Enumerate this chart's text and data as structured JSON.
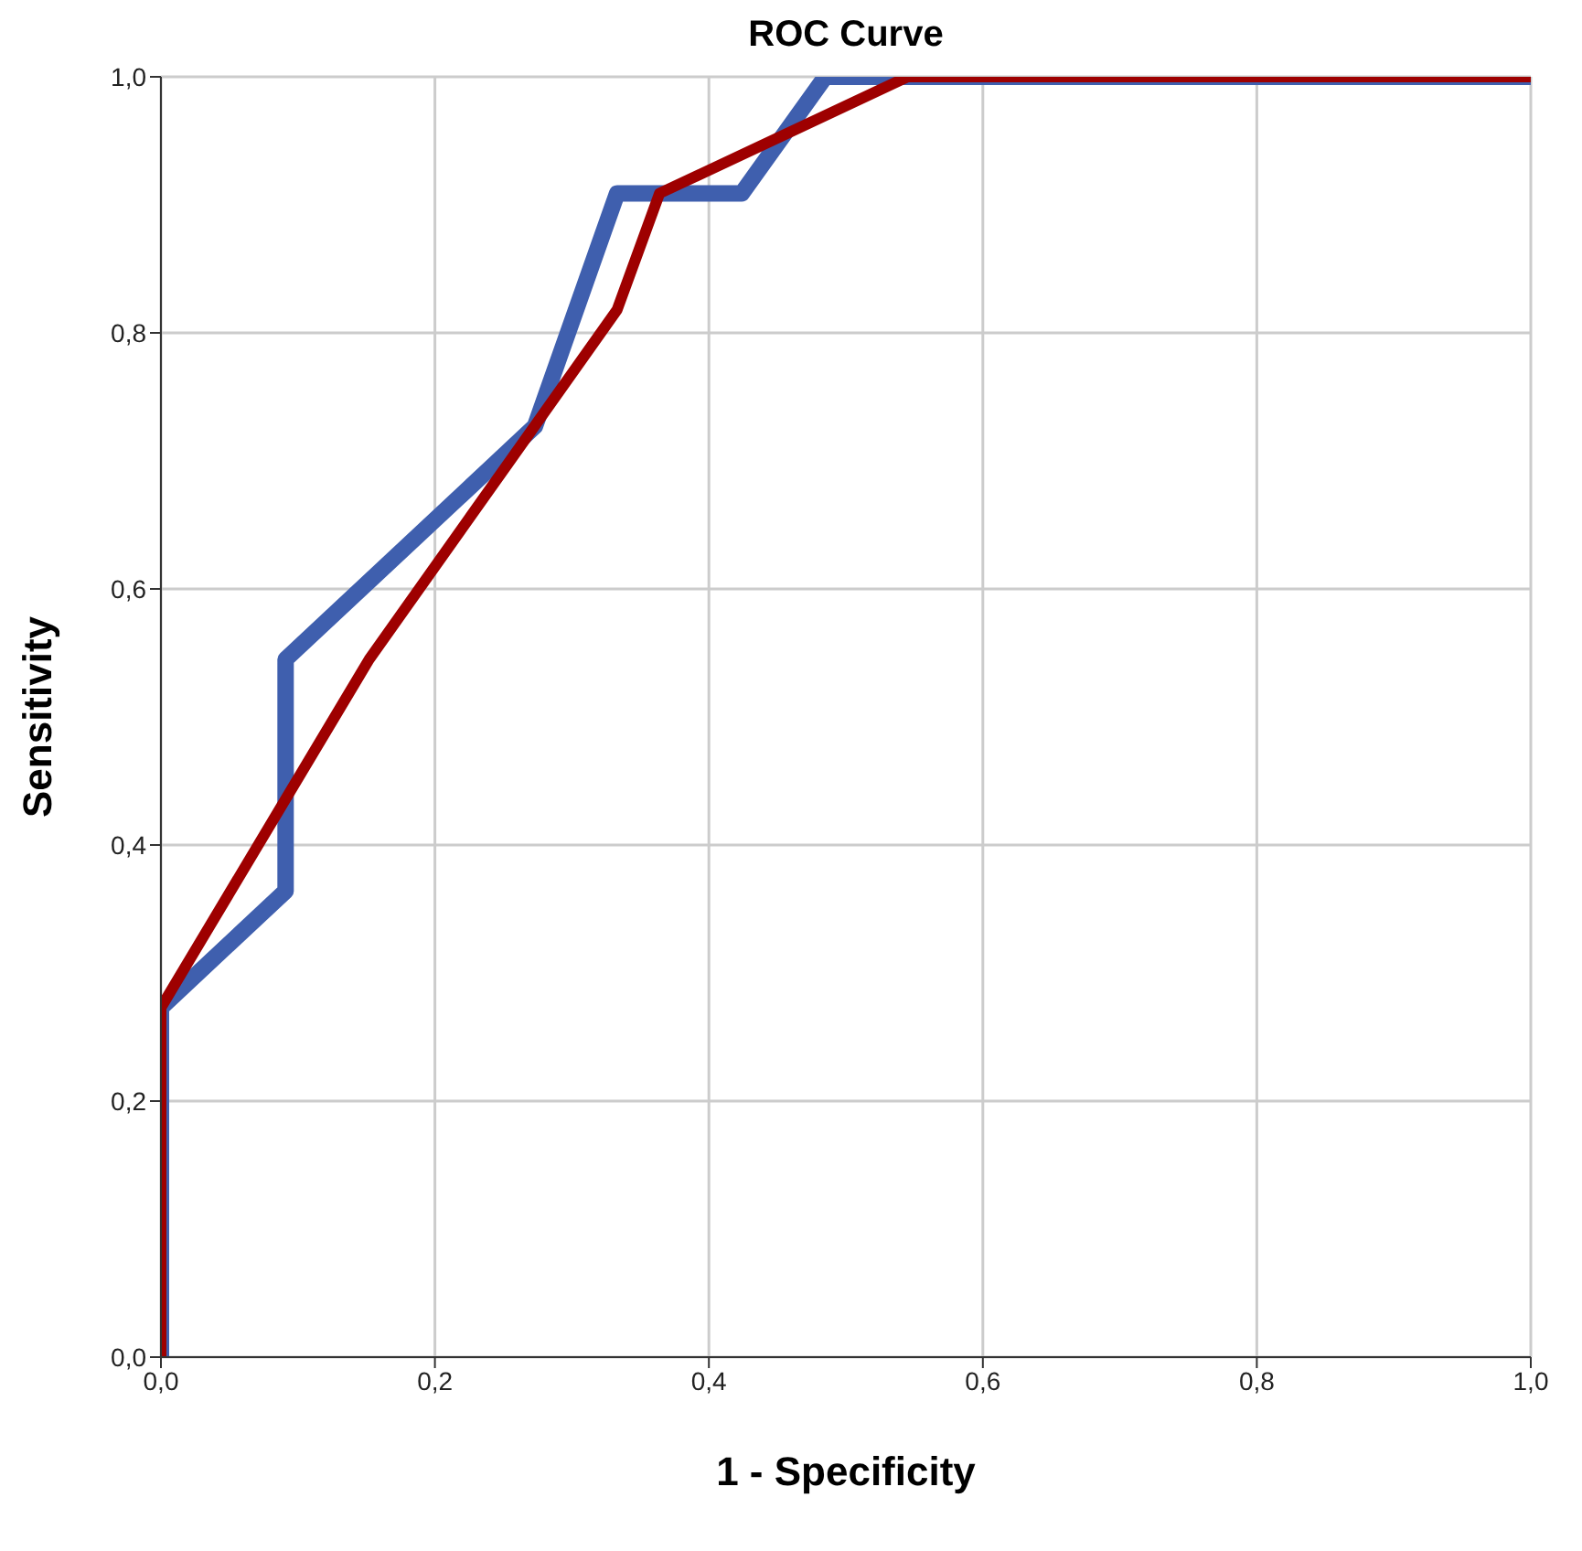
{
  "chart_data": {
    "type": "line",
    "title": "ROC Curve",
    "xlabel": "1 - Specificity",
    "ylabel": "Sensitivity",
    "series": [
      {
        "color": "#3f5fae",
        "x": [
          0,
          0,
          0.091,
          0.091,
          0.273,
          0.333,
          0.424,
          0.485,
          1
        ],
        "values": [
          0,
          0.273,
          0.364,
          0.545,
          0.727,
          0.909,
          0.909,
          1,
          1
        ]
      },
      {
        "color": "#9e0000",
        "x": [
          0,
          0,
          0.152,
          0.333,
          0.364,
          0.545,
          1
        ],
        "values": [
          0,
          0.273,
          0.545,
          0.818,
          0.909,
          1,
          1
        ]
      }
    ],
    "xlim": [
      0,
      1
    ],
    "ylim": [
      0,
      1
    ],
    "xticks": [
      {
        "value": 0,
        "label": "0,0"
      },
      {
        "value": 0.2,
        "label": "0,2"
      },
      {
        "value": 0.4,
        "label": "0,4"
      },
      {
        "value": 0.6,
        "label": "0,6"
      },
      {
        "value": 0.8,
        "label": "0,8"
      },
      {
        "value": 1,
        "label": "1,0"
      }
    ],
    "yticks": [
      {
        "value": 0,
        "label": "0,0"
      },
      {
        "value": 0.2,
        "label": "0,2"
      },
      {
        "value": 0.4,
        "label": "0,4"
      },
      {
        "value": 0.6,
        "label": "0,6"
      },
      {
        "value": 0.8,
        "label": "0,8"
      },
      {
        "value": 1,
        "label": "1,0"
      }
    ],
    "grid": true,
    "marker": "none",
    "line_style": "solid",
    "legend": false
  }
}
